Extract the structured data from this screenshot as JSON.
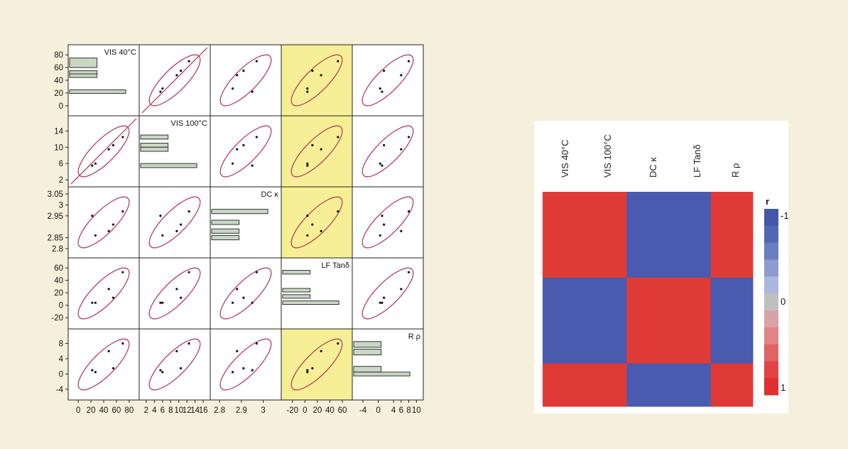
{
  "chart_data": [
    {
      "type": "scatter-matrix",
      "variables": [
        {
          "name": "VIS 40°C",
          "ticks": [
            0,
            20,
            40,
            60,
            80
          ],
          "range": [
            -8,
            88
          ],
          "hist_range": [
            0,
            85
          ],
          "values": [
            22,
            48,
            55,
            70,
            27
          ]
        },
        {
          "name": "VIS 100°C",
          "ticks": [
            2,
            6,
            10,
            14
          ],
          "tick_labels_x": [
            2,
            4,
            6,
            8,
            10,
            12,
            14,
            16
          ],
          "range": [
            1.5,
            16.5
          ],
          "hist_range": [
            0,
            16
          ],
          "values": [
            5.5,
            9.5,
            10.5,
            12.5,
            6
          ]
        },
        {
          "name": "DC κ",
          "ticks": [
            2.8,
            2.85,
            2.95,
            3,
            3.05
          ],
          "tick_labels_x": [
            2.8,
            2.9,
            3
          ],
          "range": [
            2.78,
            3.06
          ],
          "hist_range": [
            0,
            1.8
          ],
          "values": [
            2.95,
            2.88,
            2.91,
            2.97,
            2.86
          ]
        },
        {
          "name": "LF Tanδ",
          "ticks": [
            -20,
            0,
            20,
            40,
            60
          ],
          "range": [
            -30,
            68
          ],
          "hist_range": [
            0,
            62
          ],
          "values": [
            4,
            26,
            12,
            53,
            4
          ]
        },
        {
          "name": "R ρ",
          "ticks": [
            -4,
            0,
            4,
            8
          ],
          "tick_labels_x": [
            -4,
            0,
            4,
            6,
            8,
            10
          ],
          "range": [
            -5.5,
            10.5
          ],
          "hist_range": [
            0,
            11
          ],
          "values": [
            1,
            6,
            1.5,
            8,
            0.5
          ]
        }
      ],
      "histograms": [
        [
          {
            "lo": 60,
            "hi": 75,
            "count": 1
          },
          {
            "lo": 50,
            "hi": 55,
            "count": 1
          },
          {
            "lo": 45,
            "hi": 50,
            "count": 1
          },
          {
            "lo": 20,
            "hi": 25,
            "count": 2
          }
        ],
        [
          {
            "lo": 12,
            "hi": 13,
            "count": 1
          },
          {
            "lo": 10,
            "hi": 11,
            "count": 1
          },
          {
            "lo": 9,
            "hi": 10,
            "count": 1
          },
          {
            "lo": 5,
            "hi": 6,
            "count": 2
          }
        ],
        [
          {
            "lo": 2.96,
            "hi": 2.98,
            "count": 2
          },
          {
            "lo": 2.91,
            "hi": 2.93,
            "count": 1
          },
          {
            "lo": 2.87,
            "hi": 2.89,
            "count": 1
          },
          {
            "lo": 2.84,
            "hi": 2.86,
            "count": 1
          }
        ],
        [
          {
            "lo": 50,
            "hi": 56,
            "count": 1
          },
          {
            "lo": 22,
            "hi": 27,
            "count": 1
          },
          {
            "lo": 12,
            "hi": 17,
            "count": 1
          },
          {
            "lo": 2,
            "hi": 7,
            "count": 2
          }
        ],
        [
          {
            "lo": 7,
            "hi": 8.5,
            "count": 1
          },
          {
            "lo": 5,
            "hi": 6.5,
            "count": 1
          },
          {
            "lo": 0.5,
            "hi": 2,
            "count": 1
          },
          {
            "lo": -0.5,
            "hi": 0.5,
            "count": 2
          }
        ]
      ],
      "highlighted_cells": [
        [
          0,
          3
        ],
        [
          1,
          3
        ],
        [
          2,
          3
        ],
        [
          4,
          3
        ]
      ],
      "ellipse_color": "#b03050",
      "highlight_color": "#f7ef96",
      "hist_fill": "#c8d8c4"
    },
    {
      "type": "heatmap",
      "labels": [
        "VIS 40°C",
        "VIS 100°C",
        "DC κ",
        "LF Tanδ",
        "R ρ"
      ],
      "matrix": [
        [
          1,
          0.99,
          -0.9,
          -0.85,
          0.93
        ],
        [
          0.99,
          1,
          -0.9,
          -0.85,
          0.93
        ],
        [
          -0.9,
          -0.9,
          1,
          0.98,
          -0.92
        ],
        [
          -0.85,
          -0.85,
          0.98,
          1,
          -0.88
        ],
        [
          0.93,
          0.93,
          -0.92,
          -0.88,
          1
        ]
      ],
      "row_heights": [
        2,
        1,
        1,
        1
      ],
      "row_bands": [
        [
          0,
          1
        ],
        [
          2
        ],
        [
          3
        ],
        [
          4
        ]
      ],
      "col_bands": [
        [
          0,
          1
        ],
        [
          2
        ],
        [
          3
        ],
        [
          4
        ]
      ],
      "col_widths": [
        2,
        1,
        1,
        1
      ],
      "legend": {
        "title": "r",
        "tick_labels": [
          "-1",
          "0",
          "1"
        ],
        "colors": [
          "#4457a8",
          "#5267b2",
          "#6a7ec0",
          "#8c9ccf",
          "#aab7de",
          "#bfbfbf",
          "#d8a3a8",
          "#e08488",
          "#e06466",
          "#e04444",
          "#e03030"
        ]
      },
      "neg_color": "#4a5aae",
      "pos_color": "#e03a36"
    }
  ]
}
